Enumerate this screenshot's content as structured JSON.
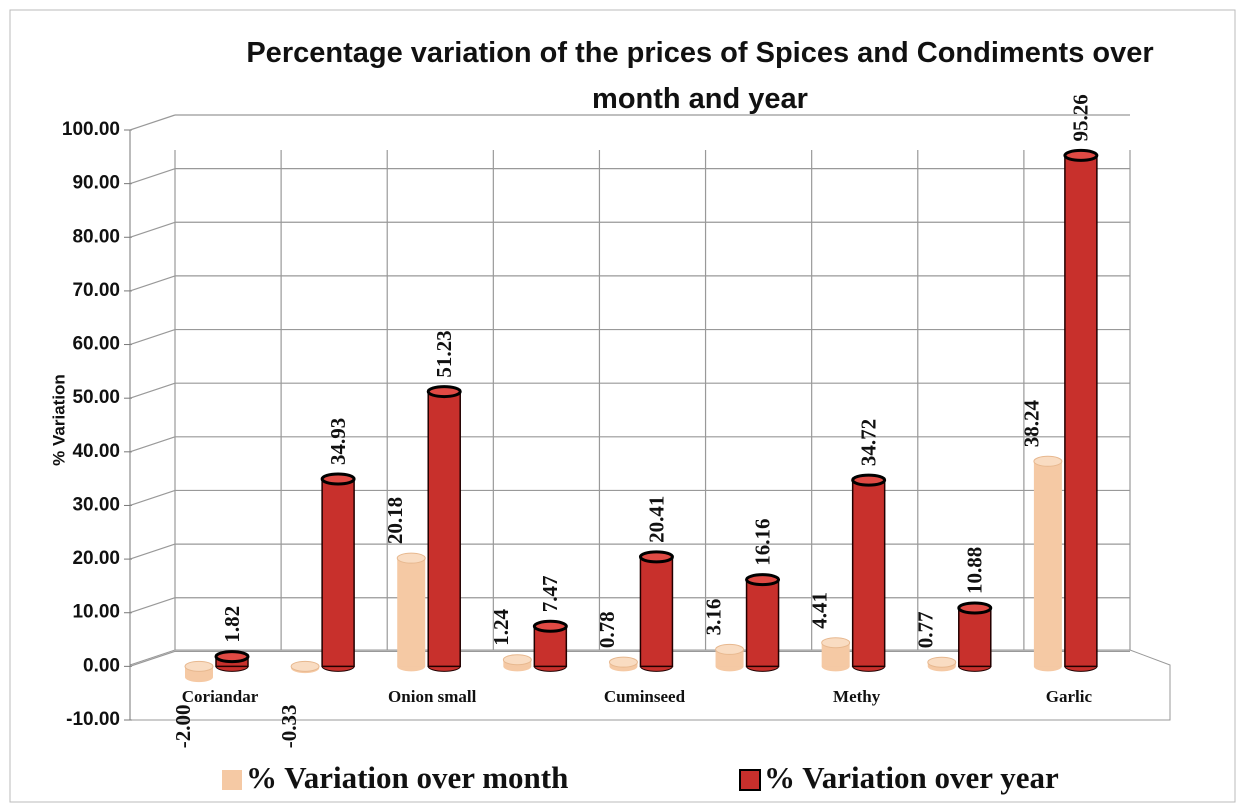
{
  "chart_data": {
    "type": "bar3d",
    "title": "Percentage variation of the prices of Spices and Condiments over month and year",
    "y_label": "% Variation",
    "categories": [
      "Coriandar",
      null,
      "Onion small",
      null,
      "Cuminseed",
      null,
      "Methy",
      null,
      "Garlic"
    ],
    "series": [
      {
        "name": "% Variation over month",
        "color": "#f5c9a4",
        "values": [
          -2.0,
          -0.33,
          20.18,
          1.24,
          0.78,
          3.16,
          4.41,
          0.77,
          38.24
        ],
        "value_labels": [
          "-2.00",
          "-0.33",
          "20.18",
          "1.24",
          "0.78",
          "3.16",
          "4.41",
          "0.77",
          "38.24"
        ]
      },
      {
        "name": "% Variation over year",
        "color": "#c8302c",
        "values": [
          1.82,
          34.93,
          51.23,
          7.47,
          20.41,
          16.16,
          34.72,
          10.88,
          95.26
        ]
      }
    ],
    "ylim": [
      -10,
      100
    ],
    "yticks": [
      {
        "value": -10,
        "label": "-10.00"
      },
      {
        "value": 0,
        "label": "0.00"
      },
      {
        "value": 10,
        "label": "10.00"
      },
      {
        "value": 20,
        "label": "20.00"
      },
      {
        "value": 30,
        "label": "30.00"
      },
      {
        "value": 40,
        "label": "40.00"
      },
      {
        "value": 50,
        "label": "50.00"
      },
      {
        "value": 60,
        "label": "60.00"
      },
      {
        "value": 70,
        "label": "70.00"
      },
      {
        "value": 80,
        "label": "80.00"
      },
      {
        "value": 90,
        "label": "90.00"
      },
      {
        "value": 100,
        "label": "100.00"
      }
    ],
    "grid": true
  }
}
